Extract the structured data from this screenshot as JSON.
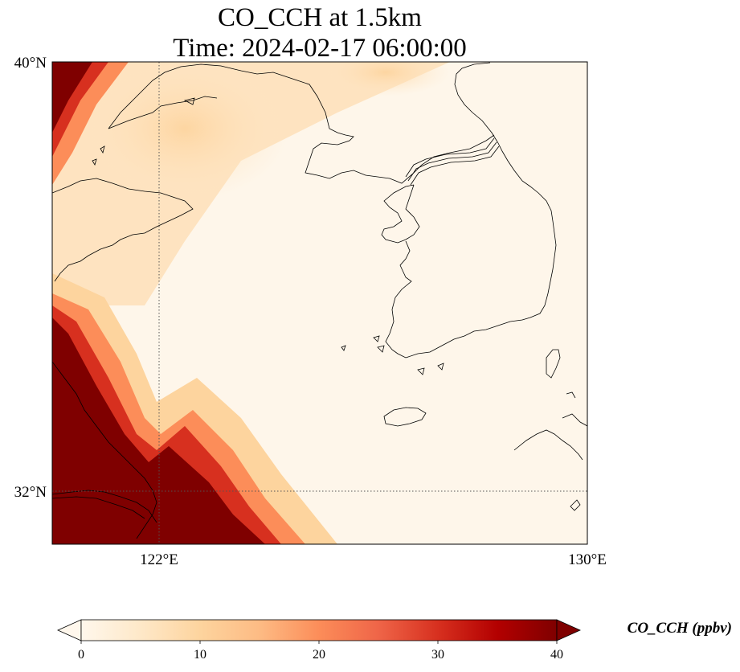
{
  "title": {
    "line1": "CO_CCH at 1.5km",
    "line2": "Time: 2024-02-17 06:00:00"
  },
  "map": {
    "lon_range": [
      121,
      126
    ],
    "lat_range": [
      31.5,
      40
    ],
    "lat_ticks": [
      {
        "value": 40,
        "label": "40°N"
      },
      {
        "value": 32,
        "label": "32°N"
      }
    ],
    "lon_ticks": [
      {
        "value": 122,
        "label": "122°E"
      },
      {
        "value": 130,
        "label": "130°E"
      }
    ],
    "gridlines": {
      "lat": 32,
      "lon": 122,
      "style": "dotted"
    },
    "field": "CO_CCH",
    "pattern": "high concentration plume over the western and southwestern edge of the domain, low background over the Korean peninsula and seas"
  },
  "colorbar": {
    "label": "CO_CCH (ppbv)",
    "min": 0,
    "max": 40,
    "ticks": [
      0,
      10,
      20,
      30,
      40
    ],
    "colormap": "OrRd",
    "extend": "both",
    "colors": [
      "#fff7ec",
      "#fee8c8",
      "#fdd49e",
      "#fdbb84",
      "#fc8d59",
      "#ef6548",
      "#d7301f",
      "#b30000",
      "#7f0000"
    ]
  }
}
